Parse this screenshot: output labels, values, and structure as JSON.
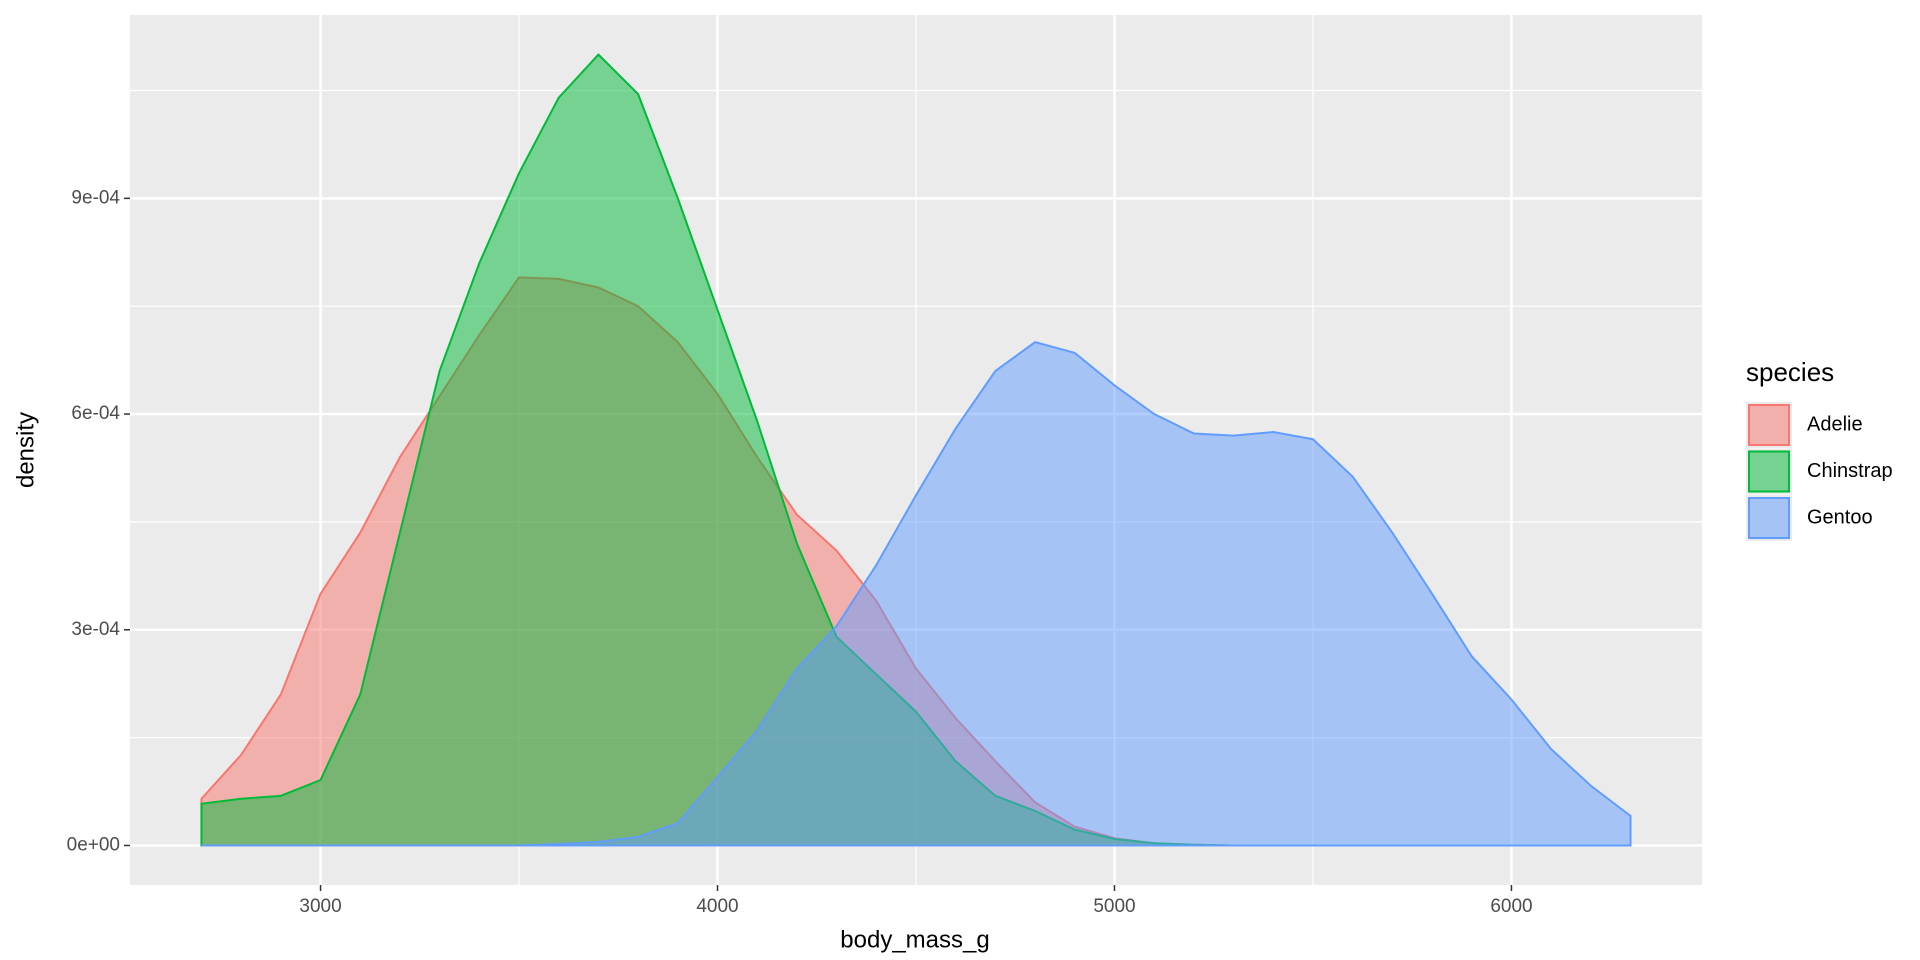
{
  "chart_data": {
    "type": "density",
    "xlabel": "body_mass_g",
    "ylabel": "density",
    "legend_title": "species",
    "legend": "right",
    "grid": true,
    "fill_alpha": 0.5,
    "xlim": [
      2520,
      6480
    ],
    "ylim": [
      -5.5e-05,
      0.001155
    ],
    "xticks": [
      3000,
      4000,
      5000,
      6000
    ],
    "yticks": [
      {
        "value": 0,
        "label": "0e+00"
      },
      {
        "value": 0.0003,
        "label": "3e-04"
      },
      {
        "value": 0.0006,
        "label": "6e-04"
      },
      {
        "value": 0.0009,
        "label": "9e-04"
      }
    ],
    "x_minor_grid": [
      3500,
      4500,
      5500
    ],
    "y_minor_grid": [
      0.00015,
      0.00045,
      0.00075,
      0.00105
    ],
    "x": [
      2700,
      2800,
      2900,
      3000,
      3100,
      3200,
      3300,
      3400,
      3500,
      3600,
      3700,
      3800,
      3900,
      4000,
      4100,
      4200,
      4300,
      4400,
      4500,
      4600,
      4700,
      4800,
      4900,
      5000,
      5100,
      5200,
      5300,
      5400,
      5500,
      5600,
      5700,
      5800,
      5900,
      6000,
      6100,
      6200,
      6300
    ],
    "series": [
      {
        "name": "Adelie",
        "color": "#F8766D",
        "values": [
          6.5e-05,
          0.000126,
          0.00021,
          0.00035,
          0.000435,
          0.00054,
          0.000625,
          0.00071,
          0.00079,
          0.000788,
          0.000776,
          0.00075,
          0.0007,
          0.000628,
          0.00054,
          0.00046,
          0.00041,
          0.00034,
          0.000246,
          0.000177,
          0.000117,
          6e-05,
          2.6e-05,
          1e-05,
          3e-06,
          1e-06,
          0,
          0,
          0,
          0,
          0,
          0,
          0,
          0,
          0,
          0,
          0
        ]
      },
      {
        "name": "Chinstrap",
        "color": "#00BA38",
        "values": [
          5.8e-05,
          6.5e-05,
          6.9e-05,
          9.1e-05,
          0.00021,
          0.000435,
          0.00066,
          0.00081,
          0.000935,
          0.00104,
          0.0011,
          0.001045,
          0.0009,
          0.000745,
          0.00059,
          0.00042,
          0.00029,
          0.000238,
          0.000186,
          0.000117,
          6.9e-05,
          4.8e-05,
          2.2e-05,
          9e-06,
          3e-06,
          1e-06,
          0,
          0,
          0,
          0,
          0,
          0,
          0,
          0,
          0,
          0,
          0
        ]
      },
      {
        "name": "Gentoo",
        "color": "#619CFF",
        "values": [
          0,
          0,
          0,
          0,
          0,
          0,
          0,
          0,
          0,
          2e-06,
          5e-06,
          1.2e-05,
          3.1e-05,
          9.5e-05,
          0.00016,
          0.000246,
          0.000305,
          0.00039,
          0.000487,
          0.00058,
          0.00066,
          0.0007,
          0.000685,
          0.00064,
          0.0006,
          0.000573,
          0.00057,
          0.000575,
          0.000565,
          0.000513,
          0.000435,
          0.00035,
          0.000263,
          0.000203,
          0.000134,
          8.3e-05,
          4.1e-05
        ]
      }
    ]
  }
}
